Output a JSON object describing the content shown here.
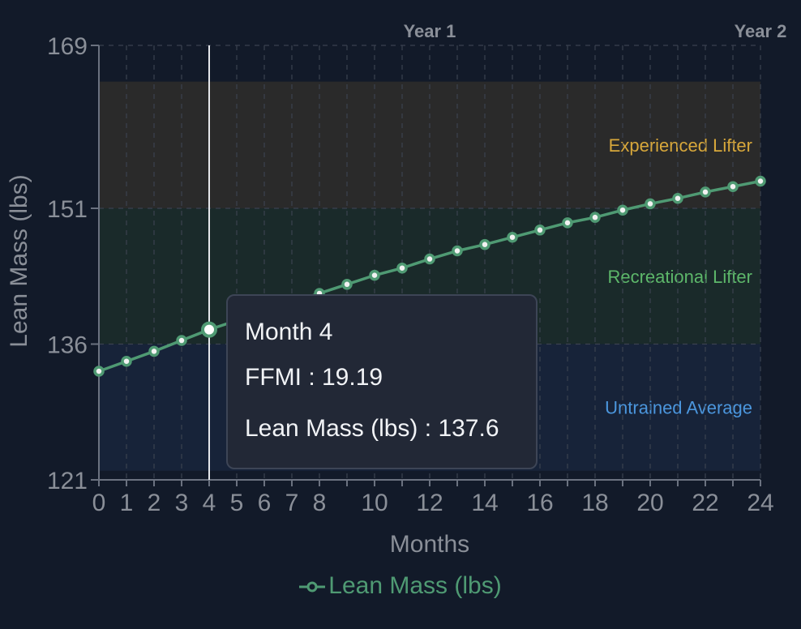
{
  "colors": {
    "background": "#121a29",
    "line": "#4f9a73",
    "grid": "#3b4250",
    "experienced_band": "#2a2a2a",
    "recreational_band": "#1a2a2a",
    "untrained_band": "#172339",
    "experienced_text": "#d7a73b",
    "recreational_text": "#5db76a",
    "untrained_text": "#4b96dd"
  },
  "chart_data": {
    "type": "line",
    "xlabel": "Months",
    "ylabel": "Lean Mass (lbs)",
    "xlim": [
      0,
      24
    ],
    "ylim": [
      121,
      169
    ],
    "y_ticks": [
      121,
      136,
      151,
      169
    ],
    "x_ticks": [
      0,
      1,
      2,
      3,
      4,
      5,
      6,
      7,
      8,
      10,
      12,
      14,
      16,
      18,
      20,
      22,
      24
    ],
    "grid": true,
    "legend": "bottom",
    "year_markers": [
      {
        "month": 12,
        "label": "Year 1"
      },
      {
        "month": 24,
        "label": "Year 2"
      }
    ],
    "bands": [
      {
        "label": "Experienced Lifter",
        "from": 151,
        "to": 165
      },
      {
        "label": "Recreational Lifter",
        "from": 136,
        "to": 151
      },
      {
        "label": "Untrained Average",
        "from": 122,
        "to": 136
      }
    ],
    "series": [
      {
        "name": "Lean Mass (lbs)",
        "x": [
          0,
          1,
          2,
          3,
          4,
          5,
          6,
          7,
          8,
          9,
          10,
          11,
          12,
          13,
          14,
          15,
          16,
          17,
          18,
          19,
          20,
          21,
          22,
          23,
          24
        ],
        "y": [
          133.0,
          134.1,
          135.2,
          136.4,
          137.6,
          138.6,
          139.6,
          140.6,
          141.6,
          142.6,
          143.6,
          144.4,
          145.4,
          146.3,
          147.0,
          147.8,
          148.6,
          149.4,
          150.0,
          150.8,
          151.5,
          152.1,
          152.8,
          153.4,
          154.0
        ]
      }
    ],
    "tooltip": {
      "month": 4,
      "title": "Month 4",
      "ffmi_label": "FFMI",
      "ffmi_value": "19.19",
      "mass_label": "Lean Mass (lbs)",
      "mass_value": "137.6"
    }
  }
}
